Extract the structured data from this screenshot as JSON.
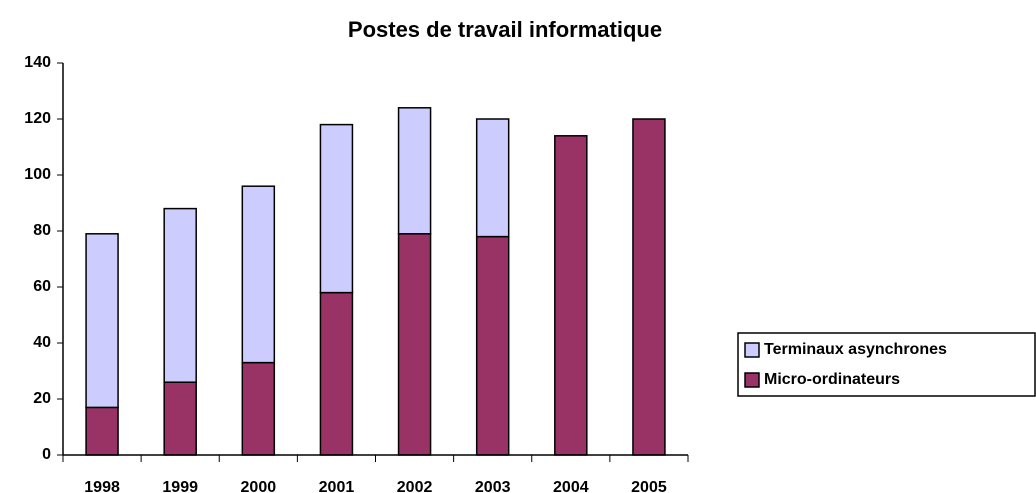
{
  "chart_data": {
    "type": "stacked_bar",
    "title": "Postes de travail informatique",
    "categories": [
      "1998",
      "1999",
      "2000",
      "2001",
      "2002",
      "2003",
      "2004",
      "2005"
    ],
    "series": [
      {
        "name": "Micro-ordinateurs",
        "color": "#993366",
        "values": [
          17,
          26,
          33,
          58,
          79,
          78,
          114,
          120
        ]
      },
      {
        "name": "Terminaux asynchrones",
        "color": "#ccccff",
        "values": [
          62,
          62,
          63,
          60,
          45,
          42,
          null,
          null
        ]
      }
    ],
    "ylim": [
      0,
      140
    ],
    "yticks": [
      0,
      20,
      40,
      60,
      80,
      100,
      120,
      140
    ],
    "grid": false,
    "legend": "right"
  }
}
